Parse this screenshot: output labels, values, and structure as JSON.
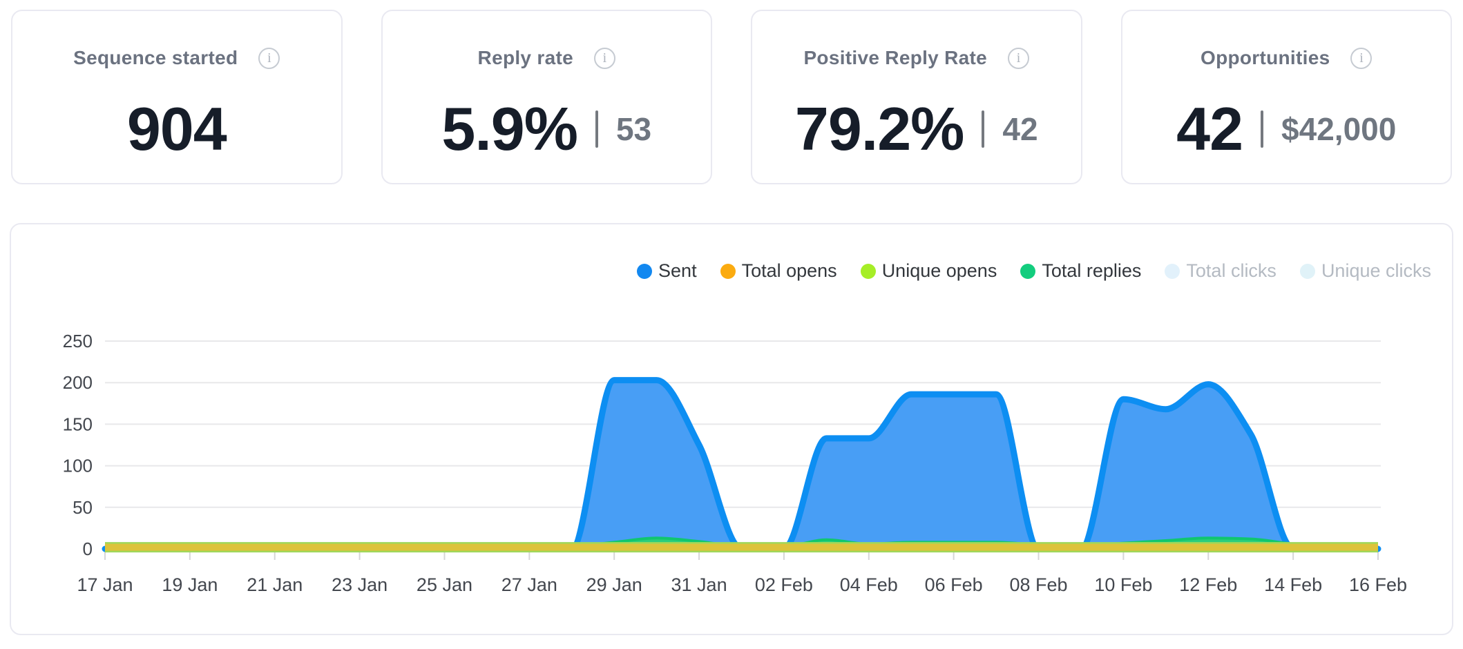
{
  "cards": [
    {
      "title": "Sequence started",
      "value": "904",
      "secondary": null
    },
    {
      "title": "Reply rate",
      "value": "5.9%",
      "secondary": "53"
    },
    {
      "title": "Positive Reply Rate",
      "value": "79.2%",
      "secondary": "42"
    },
    {
      "title": "Opportunities",
      "value": "42",
      "secondary": "$42,000"
    }
  ],
  "info_icon_glyph": "i",
  "legend": {
    "items": [
      {
        "label": "Sent",
        "color": "#1288f0",
        "disabled": false
      },
      {
        "label": "Total opens",
        "color": "#fbab10",
        "disabled": false
      },
      {
        "label": "Unique opens",
        "color": "#a6ee27",
        "disabled": false
      },
      {
        "label": "Total replies",
        "color": "#13cd7e",
        "disabled": false
      },
      {
        "label": "Total clicks",
        "color": "#e2f1fb",
        "disabled": true
      },
      {
        "label": "Unique clicks",
        "color": "#e0f2f8",
        "disabled": true
      }
    ]
  },
  "chart_data": {
    "type": "area",
    "title": "",
    "xlabel": "",
    "ylabel": "",
    "ylim": [
      0,
      250
    ],
    "y_ticks": [
      0,
      50,
      100,
      150,
      200,
      250
    ],
    "grid": "horizontal",
    "legend_position": "top-right",
    "x": [
      "17 Jan",
      "18 Jan",
      "19 Jan",
      "20 Jan",
      "21 Jan",
      "22 Jan",
      "23 Jan",
      "24 Jan",
      "25 Jan",
      "26 Jan",
      "27 Jan",
      "28 Jan",
      "29 Jan",
      "30 Jan",
      "31 Jan",
      "01 Feb",
      "02 Feb",
      "03 Feb",
      "04 Feb",
      "05 Feb",
      "06 Feb",
      "07 Feb",
      "08 Feb",
      "09 Feb",
      "10 Feb",
      "11 Feb",
      "12 Feb",
      "13 Feb",
      "14 Feb",
      "15 Feb",
      "16 Feb"
    ],
    "x_tick_labels": [
      "17 Jan",
      "19 Jan",
      "21 Jan",
      "23 Jan",
      "25 Jan",
      "27 Jan",
      "29 Jan",
      "31 Jan",
      "02 Feb",
      "04 Feb",
      "06 Feb",
      "08 Feb",
      "10 Feb",
      "12 Feb",
      "14 Feb",
      "16 Feb"
    ],
    "series": [
      {
        "name": "Sent",
        "stroke": "#0d8ef2",
        "fill": "#489ef5",
        "values": [
          0,
          0,
          0,
          0,
          0,
          0,
          0,
          0,
          0,
          0,
          0,
          0,
          203,
          203,
          125,
          0,
          0,
          133,
          133,
          186,
          186,
          186,
          0,
          0,
          180,
          168,
          198,
          138,
          0,
          0,
          0
        ]
      },
      {
        "name": "Total replies",
        "stroke": "#10c66e",
        "fill": "#2bcd7d",
        "values": [
          0,
          0,
          0,
          0,
          0,
          0,
          0,
          0,
          0,
          0,
          0,
          3,
          8,
          13,
          9,
          3,
          3,
          11,
          6,
          8,
          8,
          8,
          5,
          4,
          7,
          10,
          13,
          12,
          6,
          3,
          2
        ]
      },
      {
        "name": "Unique opens",
        "stroke": "#a0d75a",
        "fill": "#a0d75a",
        "values": [
          2,
          2,
          2,
          2,
          2,
          2,
          2,
          2,
          2,
          2,
          2,
          2,
          2,
          2,
          2,
          2,
          2,
          2,
          2,
          2,
          2,
          2,
          2,
          2,
          2,
          2,
          2,
          2,
          2,
          2,
          2
        ]
      },
      {
        "name": "Total opens",
        "stroke": "#ddc33a",
        "fill": "#ddc33a",
        "values": [
          2,
          2,
          2,
          2,
          2,
          2,
          2,
          2,
          2,
          2,
          2,
          2,
          2,
          2,
          2,
          2,
          2,
          2,
          2,
          2,
          2,
          2,
          2,
          2,
          2,
          2,
          2,
          2,
          2,
          2,
          2
        ]
      }
    ]
  }
}
